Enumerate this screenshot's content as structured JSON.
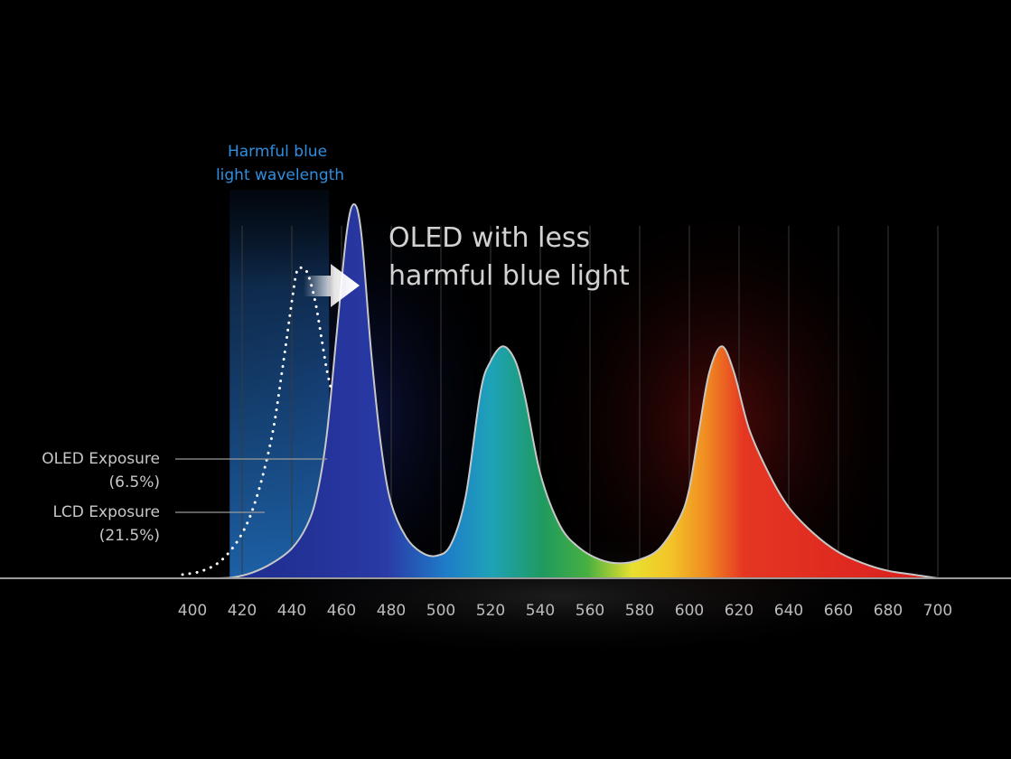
{
  "chart_data": {
    "type": "area",
    "title": "",
    "xlabel": "",
    "ylabel": "",
    "xlim": [
      400,
      700
    ],
    "x_ticks": [
      "400",
      "420",
      "440",
      "460",
      "480",
      "500",
      "520",
      "540",
      "560",
      "580",
      "600",
      "620",
      "640",
      "660",
      "680",
      "700"
    ],
    "grid": true,
    "series": [
      {
        "x": [
          400,
          408,
          416,
          424,
          432,
          440,
          446,
          450,
          454,
          458,
          462,
          465,
          468,
          472,
          476,
          480,
          486,
          492,
          498,
          504,
          510,
          516,
          520,
          525,
          530,
          534,
          540,
          548,
          556,
          564,
          572,
          580,
          588,
          596,
          600,
          604,
          608,
          613,
          618,
          624,
          632,
          640,
          650,
          660,
          670,
          680,
          690,
          700
        ],
        "y": [
          0,
          0,
          0.2,
          1.5,
          4,
          8,
          14,
          22,
          38,
          65,
          92,
          100,
          92,
          60,
          35,
          20,
          11,
          7,
          6,
          9,
          22,
          50,
          58,
          62,
          58,
          48,
          28,
          14,
          8,
          5,
          4,
          5,
          8,
          16,
          24,
          40,
          55,
          62,
          55,
          40,
          28,
          19,
          12,
          7,
          4,
          2,
          1,
          0
        ]
      },
      {
        "x": [
          396,
          404,
          412,
          420,
          426,
          432,
          436,
          440,
          442,
          444,
          446,
          448,
          450,
          452,
          454,
          456
        ],
        "y": [
          1,
          2,
          5,
          12,
          22,
          38,
          55,
          74,
          82,
          83,
          82,
          78,
          72,
          64,
          56,
          50
        ]
      }
    ],
    "annotations": {
      "harmful_line1": "Harmful blue",
      "harmful_line2": "light wavelength",
      "headline_line1": "OLED with less",
      "headline_line2": "harmful blue light",
      "oled_label": "OLED Exposure",
      "oled_value": "(6.5%)",
      "lcd_label": "LCD Exposure",
      "lcd_value": "(21.5%)"
    },
    "colors": {
      "background": "#000000",
      "harmful_band": "#1f6fc0",
      "blue": "#2b3aa0",
      "cyan": "#1fa0d0",
      "green": "#20a060",
      "yellow": "#f0e030",
      "orange": "#f08020",
      "red": "#e02020",
      "curve": "#c8c8c8",
      "harmful_text": "#2f8ee0"
    }
  }
}
